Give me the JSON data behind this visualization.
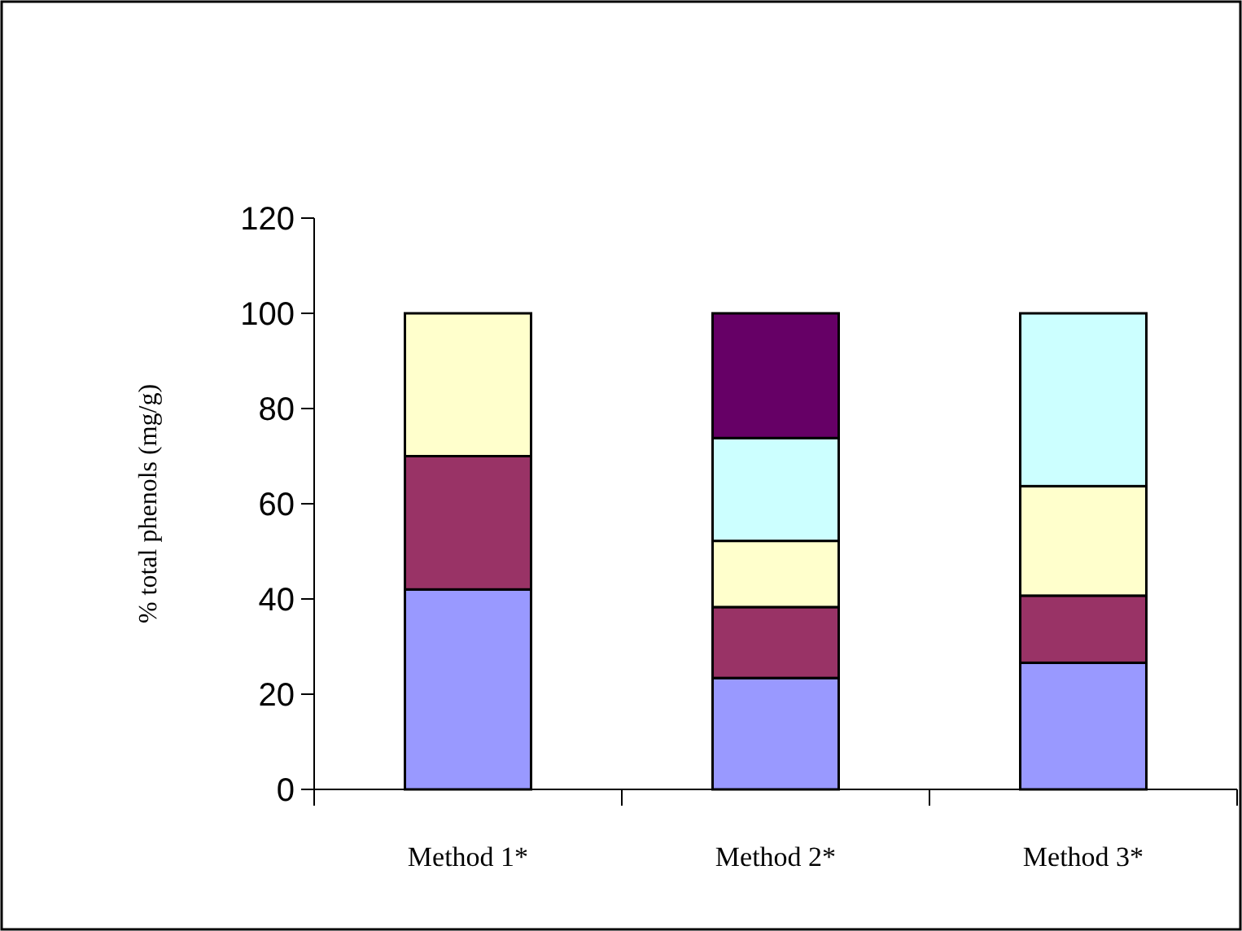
{
  "chart_data": {
    "type": "bar",
    "stacked": true,
    "ylabel": "% total phenols (mg/g)",
    "categories": [
      "Method 1*",
      "Method 2*",
      "Method 3*"
    ],
    "series": [
      {
        "color": "#9999ff",
        "values": [
          42,
          23.4,
          26.6
        ]
      },
      {
        "color": "#993366",
        "values": [
          28,
          14.9,
          14.1
        ]
      },
      {
        "color": "#ffffcc",
        "values": [
          30,
          13.9,
          23
        ]
      },
      {
        "color": "#ccffff",
        "values": [
          null,
          21.6,
          36.3
        ]
      },
      {
        "color": "#660066",
        "values": [
          null,
          26.2,
          null
        ]
      }
    ],
    "ylim": [
      0,
      120
    ],
    "yticks": [
      0,
      20,
      40,
      60,
      80,
      100,
      120
    ]
  }
}
